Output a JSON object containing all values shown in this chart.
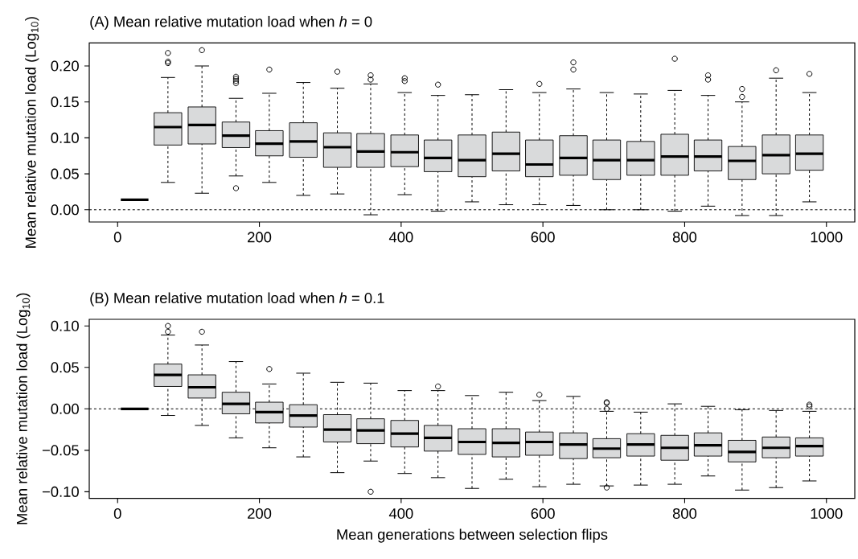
{
  "chart_data": [
    {
      "type": "box",
      "title": "(A)  Mean relative mutation load when *h* = 0",
      "ylabel": "Mean relative mutation load (Log$_{10}$)",
      "colors": [
        "#000000",
        "#d9dadb",
        "#d9dadb",
        "#d9dadb",
        "#d9dadb",
        "#d9dadb",
        "#d9dadb",
        "#d9dadb",
        "#d9dadb",
        "#d9dadb",
        "#d9dadb",
        "#d9dadb",
        "#d9dadb",
        "#d9dadb",
        "#d9dadb",
        "#d9dadb",
        "#d9dadb",
        "#d9dadb",
        "#d9dadb",
        "#d9dadb",
        "#d9dadb"
      ],
      "x": [
        24,
        71,
        119,
        167,
        214,
        262,
        310,
        357,
        405,
        452,
        500,
        548,
        595,
        643,
        690,
        738,
        786,
        833,
        881,
        929,
        976
      ],
      "boxes": [
        {
          "low": 0.014,
          "q1": 0.014,
          "median": 0.014,
          "q3": 0.014,
          "high": 0.014
        },
        {
          "low": 0.038,
          "q1": 0.09,
          "median": 0.115,
          "q3": 0.135,
          "high": 0.184,
          "outliers": [
            0.218,
            0.206,
            0.204
          ]
        },
        {
          "low": 0.023,
          "q1": 0.0915,
          "median": 0.118,
          "q3": 0.143,
          "high": 0.2,
          "outliers": [
            0.222
          ]
        },
        {
          "low": 0.047,
          "q1": 0.0865,
          "median": 0.103,
          "q3": 0.122,
          "high": 0.155,
          "outliers": [
            0.185,
            0.182,
            0.179,
            0.176,
            0.03
          ]
        },
        {
          "low": 0.038,
          "q1": 0.075,
          "median": 0.092,
          "q3": 0.11,
          "high": 0.162,
          "outliers": [
            0.195
          ]
        },
        {
          "low": 0.02,
          "q1": 0.073,
          "median": 0.095,
          "q3": 0.121,
          "high": 0.177
        },
        {
          "low": 0.022,
          "q1": 0.059,
          "median": 0.087,
          "q3": 0.107,
          "high": 0.169,
          "outliers": [
            0.192
          ]
        },
        {
          "low": -0.007,
          "q1": 0.059,
          "median": 0.081,
          "q3": 0.106,
          "high": 0.175,
          "outliers": [
            0.187,
            0.181
          ]
        },
        {
          "low": 0.021,
          "q1": 0.06,
          "median": 0.08,
          "q3": 0.104,
          "high": 0.163,
          "outliers": [
            0.183,
            0.179
          ]
        },
        {
          "low": -0.002,
          "q1": 0.053,
          "median": 0.072,
          "q3": 0.097,
          "high": 0.159,
          "outliers": [
            0.174
          ]
        },
        {
          "low": 0.011,
          "q1": 0.046,
          "median": 0.069,
          "q3": 0.104,
          "high": 0.16
        },
        {
          "low": 0.007,
          "q1": 0.054,
          "median": 0.078,
          "q3": 0.108,
          "high": 0.167
        },
        {
          "low": 0.007,
          "q1": 0.046,
          "median": 0.063,
          "q3": 0.097,
          "high": 0.163,
          "outliers": [
            0.175
          ]
        },
        {
          "low": 0.006,
          "q1": 0.048,
          "median": 0.072,
          "q3": 0.103,
          "high": 0.168,
          "outliers": [
            0.205,
            0.195
          ]
        },
        {
          "low": 0.0,
          "q1": 0.042,
          "median": 0.069,
          "q3": 0.097,
          "high": 0.163
        },
        {
          "low": 0.0,
          "q1": 0.048,
          "median": 0.069,
          "q3": 0.095,
          "high": 0.161
        },
        {
          "low": -0.002,
          "q1": 0.048,
          "median": 0.074,
          "q3": 0.105,
          "high": 0.166,
          "outliers": [
            0.21
          ]
        },
        {
          "low": 0.005,
          "q1": 0.054,
          "median": 0.074,
          "q3": 0.097,
          "high": 0.159,
          "outliers": [
            0.187,
            0.181
          ]
        },
        {
          "low": -0.008,
          "q1": 0.042,
          "median": 0.068,
          "q3": 0.088,
          "high": 0.15,
          "outliers": [
            0.168,
            0.157
          ]
        },
        {
          "low": -0.008,
          "q1": 0.05,
          "median": 0.076,
          "q3": 0.104,
          "high": 0.183,
          "outliers": [
            0.194
          ]
        },
        {
          "low": 0.011,
          "q1": 0.055,
          "median": 0.078,
          "q3": 0.104,
          "high": 0.163,
          "outliers": [
            0.189
          ]
        }
      ],
      "xlim": [
        -40,
        1040
      ],
      "xticks": [
        0,
        200,
        400,
        600,
        800,
        1000
      ],
      "ylim": [
        -0.017,
        0.232
      ],
      "yticks": [
        {
          "value": 0,
          "label": "0.00"
        },
        {
          "value": 0.05,
          "label": "0.05"
        },
        {
          "value": 0.1,
          "label": "0.10"
        },
        {
          "value": 0.15,
          "label": "0.15"
        },
        {
          "value": 0.2,
          "label": "0.20"
        }
      ],
      "ref_lines": [
        {
          "axis": "y",
          "value": 0,
          "line_style": "dashed"
        }
      ]
    },
    {
      "type": "box",
      "title": "(B)  Mean relative mutation load when *h* = 0.1",
      "ylabel": "Mean relative mutation load (Log$_{10}$)",
      "xlabel": "Mean generations between selection flips",
      "colors": [
        "#000000",
        "#d9dadb",
        "#d9dadb",
        "#d9dadb",
        "#d9dadb",
        "#d9dadb",
        "#d9dadb",
        "#d9dadb",
        "#d9dadb",
        "#d9dadb",
        "#d9dadb",
        "#d9dadb",
        "#d9dadb",
        "#d9dadb",
        "#d9dadb",
        "#d9dadb",
        "#d9dadb",
        "#d9dadb",
        "#d9dadb",
        "#d9dadb",
        "#d9dadb"
      ],
      "x": [
        24,
        71,
        119,
        167,
        214,
        262,
        310,
        357,
        405,
        452,
        500,
        548,
        595,
        643,
        690,
        738,
        786,
        833,
        881,
        929,
        976
      ],
      "boxes": [
        {
          "low": 0,
          "q1": 0,
          "median": 0,
          "q3": 0,
          "high": 0
        },
        {
          "low": -0.008,
          "q1": 0.027,
          "median": 0.041,
          "q3": 0.054,
          "high": 0.089,
          "outliers": [
            0.1,
            0.093
          ]
        },
        {
          "low": -0.02,
          "q1": 0.013,
          "median": 0.026,
          "q3": 0.041,
          "high": 0.077,
          "outliers": [
            0.093
          ]
        },
        {
          "low": -0.035,
          "q1": -0.006,
          "median": 0.006,
          "q3": 0.02,
          "high": 0.057
        },
        {
          "low": -0.047,
          "q1": -0.017,
          "median": -0.004,
          "q3": 0.008,
          "high": 0.03,
          "outliers": [
            0.048
          ]
        },
        {
          "low": -0.058,
          "q1": -0.022,
          "median": -0.008,
          "q3": 0.005,
          "high": 0.043
        },
        {
          "low": -0.077,
          "q1": -0.04,
          "median": -0.025,
          "q3": -0.007,
          "high": 0.032
        },
        {
          "low": -0.063,
          "q1": -0.042,
          "median": -0.026,
          "q3": -0.012,
          "high": 0.031,
          "outliers": [
            -0.1
          ]
        },
        {
          "low": -0.078,
          "q1": -0.046,
          "median": -0.03,
          "q3": -0.014,
          "high": 0.022
        },
        {
          "low": -0.083,
          "q1": -0.051,
          "median": -0.035,
          "q3": -0.02,
          "high": 0.022,
          "outliers": [
            0.027
          ]
        },
        {
          "low": -0.096,
          "q1": -0.055,
          "median": -0.04,
          "q3": -0.024,
          "high": 0.016
        },
        {
          "low": -0.085,
          "q1": -0.058,
          "median": -0.041,
          "q3": -0.024,
          "high": 0.02
        },
        {
          "low": -0.094,
          "q1": -0.056,
          "median": -0.04,
          "q3": -0.028,
          "high": 0.01,
          "outliers": [
            0.017
          ]
        },
        {
          "low": -0.091,
          "q1": -0.06,
          "median": -0.043,
          "q3": -0.029,
          "high": 0.015
        },
        {
          "low": -0.093,
          "q1": -0.059,
          "median": -0.048,
          "q3": -0.036,
          "high": -0.003,
          "outliers": [
            0.008,
            0.007,
            0.0,
            -0.095
          ]
        },
        {
          "low": -0.092,
          "q1": -0.057,
          "median": -0.043,
          "q3": -0.03,
          "high": -0.004
        },
        {
          "low": -0.091,
          "q1": -0.062,
          "median": -0.047,
          "q3": -0.032,
          "high": 0.006
        },
        {
          "low": -0.081,
          "q1": -0.057,
          "median": -0.044,
          "q3": -0.029,
          "high": 0.003
        },
        {
          "low": -0.098,
          "q1": -0.064,
          "median": -0.052,
          "q3": -0.038,
          "high": -0.001
        },
        {
          "low": -0.095,
          "q1": -0.059,
          "median": -0.047,
          "q3": -0.034,
          "high": -0.002
        },
        {
          "low": -0.087,
          "q1": -0.057,
          "median": -0.045,
          "q3": -0.035,
          "high": -0.003,
          "outliers": [
            0.005,
            0.003
          ]
        }
      ],
      "xlim": [
        -40,
        1040
      ],
      "xticks": [
        0,
        200,
        400,
        600,
        800,
        1000
      ],
      "ylim": [
        -0.108,
        0.108
      ],
      "yticks": [
        {
          "value": -0.1,
          "label": "−0.10"
        },
        {
          "value": -0.05,
          "label": "−0.05"
        },
        {
          "value": 0,
          "label": "0.00"
        },
        {
          "value": 0.05,
          "label": "0.05"
        },
        {
          "value": 0.1,
          "label": "0.10"
        }
      ],
      "ref_lines": [
        {
          "axis": "y",
          "value": 0,
          "line_style": "dashed"
        }
      ]
    }
  ]
}
